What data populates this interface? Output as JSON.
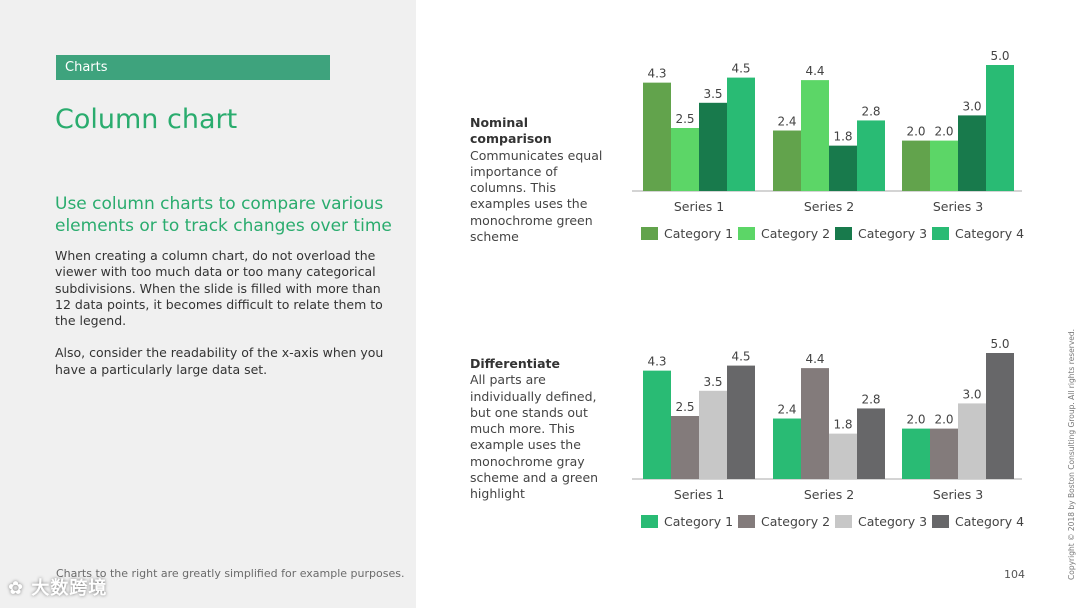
{
  "header": {
    "tag": "Charts",
    "title": "Column chart"
  },
  "intro": {
    "subtitle": "Use column charts to compare various elements or to track changes over time",
    "paragraph1": "When creating a column chart, do not overload the viewer with too much data or too many categorical subdivisions. When the slide is filled with more than 12 data points, it becomes difficult to relate them to the legend.",
    "paragraph2": "Also, consider the readability of the x-axis when you have a particularly large data set."
  },
  "footer": {
    "note": "Charts to the right are greatly simplified for example purposes.",
    "page_number": "104",
    "copyright": "Copyright © 2018 by Boston Consulting Group. All rights reserved.",
    "watermark": "大数跨境"
  },
  "descriptions": [
    {
      "title": "Nominal comparison",
      "text": "Communicates equal importance of columns. This examples uses the monochrome green scheme"
    },
    {
      "title": "Differentiate",
      "text": "All parts are individually defined, but one stands out much more. This example uses the monochrome gray scheme and a green highlight"
    }
  ],
  "chart_data": [
    {
      "type": "bar",
      "title": "Nominal comparison",
      "categories": [
        "Series 1",
        "Series 2",
        "Series 3"
      ],
      "series": [
        {
          "name": "Category 1",
          "values": [
            4.3,
            2.4,
            2.0
          ],
          "color": "#62a34c"
        },
        {
          "name": "Category 2",
          "values": [
            2.5,
            4.4,
            2.0
          ],
          "color": "#5cd667"
        },
        {
          "name": "Category 3",
          "values": [
            3.5,
            1.8,
            3.0
          ],
          "color": "#187a4c"
        },
        {
          "name": "Category 4",
          "values": [
            4.5,
            2.8,
            5.0
          ],
          "color": "#29bb74"
        }
      ],
      "value_format": "0.0",
      "ylim": [
        0,
        5
      ],
      "legend": "bottom",
      "grid": false
    },
    {
      "type": "bar",
      "title": "Differentiate",
      "categories": [
        "Series 1",
        "Series 2",
        "Series 3"
      ],
      "series": [
        {
          "name": "Category 1",
          "values": [
            4.3,
            2.4,
            2.0
          ],
          "color": "#29bb74"
        },
        {
          "name": "Category 2",
          "values": [
            2.5,
            4.4,
            2.0
          ],
          "color": "#837b7b"
        },
        {
          "name": "Category 3",
          "values": [
            3.5,
            1.8,
            3.0
          ],
          "color": "#c7c7c7"
        },
        {
          "name": "Category 4",
          "values": [
            4.5,
            2.8,
            5.0
          ],
          "color": "#676769"
        }
      ],
      "value_format": "0.0",
      "ylim": [
        0,
        5
      ],
      "legend": "bottom",
      "grid": false
    }
  ]
}
